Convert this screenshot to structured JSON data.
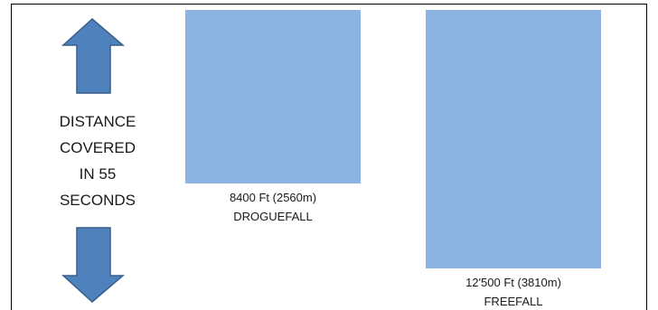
{
  "chart_data": {
    "type": "bar",
    "categories": [
      "DROGUEFALL",
      "FREEFALL"
    ],
    "value_labels": [
      "8400 Ft (2560m)",
      "12'500 Ft (3810m)"
    ],
    "values": [
      8400,
      12500
    ],
    "unit": "Ft",
    "ylabel_lines": [
      "DISTANCE",
      "COVERED",
      "IN 55",
      "SECONDS"
    ],
    "bar_color": "#8db3e2",
    "arrow_color": "#4f81bd",
    "arrow_outline_color": "#385d8a",
    "border_color": "#000000",
    "orientation": "downward",
    "arrow_icons": [
      "up-arrow-icon",
      "down-arrow-icon"
    ]
  }
}
